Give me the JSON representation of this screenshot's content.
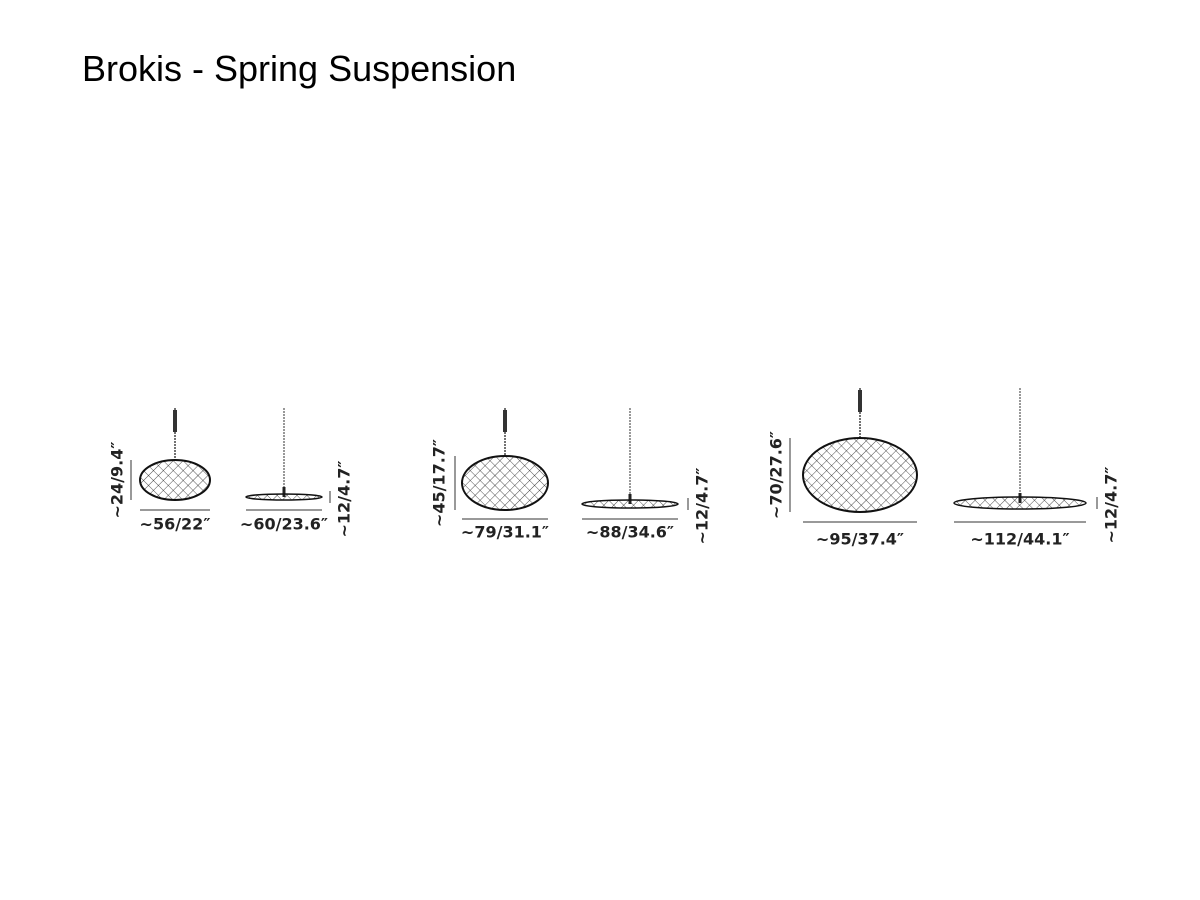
{
  "header": {
    "title": "Brokis - Spring Suspension"
  },
  "sizes": [
    {
      "sphere": {
        "height": "~24/9.4″",
        "width": "~56/22″"
      },
      "flat": {
        "width": "~60/23.6″",
        "height": "~12/4.7″"
      }
    },
    {
      "sphere": {
        "height": "~45/17.7″",
        "width": "~79/31.1″"
      },
      "flat": {
        "width": "~88/34.6″",
        "height": "~12/4.7″"
      }
    },
    {
      "sphere": {
        "height": "~70/27.6″",
        "width": "~95/37.4″"
      },
      "flat": {
        "width": "~112/44.1″",
        "height": "~12/4.7″"
      }
    }
  ]
}
